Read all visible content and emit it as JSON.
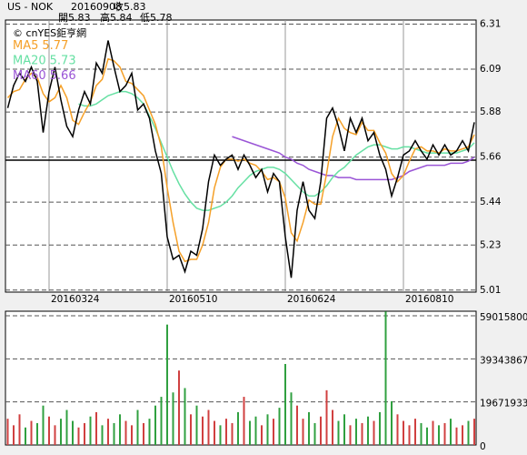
{
  "header": {
    "symbol": "US - NOK",
    "date": "20160908",
    "close": "收5.83",
    "open": "開5.83",
    "high": "高5.84",
    "low": "低5.78"
  },
  "chart_data": [
    {
      "type": "line",
      "watermark": "© cnYES鉅亨網",
      "categories": [
        null,
        null,
        null,
        null,
        null,
        null,
        null,
        "20160324",
        null,
        null,
        null,
        null,
        null,
        null,
        null,
        null,
        null,
        null,
        null,
        null,
        null,
        null,
        null,
        null,
        null,
        null,
        null,
        "20160510",
        null,
        null,
        null,
        null,
        null,
        null,
        null,
        null,
        null,
        null,
        null,
        null,
        null,
        null,
        null,
        null,
        null,
        null,
        null,
        "20160624",
        null,
        null,
        null,
        null,
        null,
        null,
        null,
        null,
        null,
        null,
        null,
        null,
        null,
        null,
        null,
        null,
        null,
        null,
        null,
        "20160810",
        null,
        null,
        null,
        null,
        null,
        null,
        null,
        null,
        null,
        null,
        null,
        null
      ],
      "ylim": [
        5.0,
        6.33
      ],
      "yticks": [
        6.31,
        6.09,
        5.88,
        5.66,
        5.44,
        5.23,
        5.01
      ],
      "reference_line": 5.645,
      "grid": true,
      "series": [
        {
          "color": "#000000",
          "values": [
            5.9,
            6.01,
            6.07,
            6.03,
            6.1,
            6.03,
            5.78,
            5.98,
            6.1,
            5.94,
            5.81,
            5.76,
            5.89,
            5.98,
            5.92,
            6.12,
            6.07,
            6.23,
            6.1,
            5.98,
            6.01,
            6.07,
            5.89,
            5.92,
            5.85,
            5.69,
            5.58,
            5.27,
            5.16,
            5.18,
            5.1,
            5.2,
            5.18,
            5.31,
            5.54,
            5.67,
            5.62,
            5.65,
            5.67,
            5.6,
            5.67,
            5.62,
            5.56,
            5.6,
            5.49,
            5.58,
            5.54,
            5.27,
            5.07,
            5.4,
            5.54,
            5.4,
            5.36,
            5.54,
            5.85,
            5.9,
            5.81,
            5.69,
            5.85,
            5.78,
            5.85,
            5.74,
            5.78,
            5.67,
            5.6,
            5.47,
            5.56,
            5.67,
            5.69,
            5.74,
            5.69,
            5.65,
            5.72,
            5.67,
            5.72,
            5.67,
            5.69,
            5.74,
            5.69,
            5.83
          ]
        },
        {
          "name": "MA5",
          "last": 5.77,
          "color": "#f5a028",
          "values": [
            5.95,
            5.98,
            5.99,
            6.04,
            6.07,
            6.05,
            5.97,
            5.93,
            5.95,
            6.01,
            5.95,
            5.84,
            5.82,
            5.88,
            5.93,
            6.01,
            6.04,
            6.14,
            6.13,
            6.1,
            6.03,
            6.02,
            5.99,
            5.96,
            5.89,
            5.82,
            5.71,
            5.51,
            5.34,
            5.2,
            5.15,
            5.16,
            5.16,
            5.23,
            5.34,
            5.51,
            5.61,
            5.65,
            5.65,
            5.64,
            5.65,
            5.63,
            5.62,
            5.59,
            5.55,
            5.56,
            5.54,
            5.46,
            5.29,
            5.25,
            5.34,
            5.45,
            5.43,
            5.43,
            5.58,
            5.76,
            5.85,
            5.8,
            5.78,
            5.77,
            5.83,
            5.79,
            5.79,
            5.73,
            5.68,
            5.58,
            5.54,
            5.57,
            5.64,
            5.7,
            5.71,
            5.69,
            5.69,
            5.68,
            5.7,
            5.69,
            5.69,
            5.7,
            5.71,
            5.77
          ]
        },
        {
          "name": "MA20",
          "last": 5.73,
          "color": "#66e0a3",
          "values": [
            null,
            null,
            null,
            null,
            null,
            null,
            null,
            null,
            null,
            null,
            null,
            null,
            5.92,
            5.91,
            5.91,
            5.92,
            5.94,
            5.96,
            5.97,
            5.98,
            5.98,
            5.97,
            5.95,
            5.92,
            5.86,
            5.8,
            5.73,
            5.66,
            5.59,
            5.53,
            5.48,
            5.44,
            5.41,
            5.4,
            5.4,
            5.41,
            5.42,
            5.44,
            5.47,
            5.51,
            5.54,
            5.57,
            5.59,
            5.6,
            5.61,
            5.61,
            5.6,
            5.58,
            5.55,
            5.52,
            5.49,
            5.47,
            5.47,
            5.49,
            5.52,
            5.56,
            5.59,
            5.61,
            5.64,
            5.67,
            5.69,
            5.71,
            5.72,
            5.72,
            5.71,
            5.7,
            5.7,
            5.71,
            5.71,
            5.7,
            5.69,
            5.68,
            5.68,
            5.68,
            5.68,
            5.68,
            5.68,
            5.69,
            5.7,
            5.73
          ]
        },
        {
          "name": "MA60",
          "last": 5.66,
          "color": "#9a55d6",
          "values": [
            null,
            null,
            null,
            null,
            null,
            null,
            null,
            null,
            null,
            null,
            null,
            null,
            null,
            null,
            null,
            null,
            null,
            null,
            null,
            null,
            null,
            null,
            null,
            null,
            null,
            null,
            null,
            null,
            null,
            null,
            null,
            null,
            null,
            null,
            null,
            null,
            null,
            null,
            5.76,
            5.75,
            5.74,
            5.73,
            5.72,
            5.71,
            5.7,
            5.69,
            5.68,
            5.66,
            5.65,
            5.63,
            5.62,
            5.6,
            5.59,
            5.58,
            5.57,
            5.57,
            5.56,
            5.56,
            5.56,
            5.55,
            5.55,
            5.55,
            5.55,
            5.55,
            5.55,
            5.55,
            5.56,
            5.57,
            5.59,
            5.6,
            5.61,
            5.62,
            5.62,
            5.62,
            5.62,
            5.63,
            5.63,
            5.63,
            5.64,
            5.66
          ]
        }
      ]
    },
    {
      "type": "bar",
      "ylim": [
        0,
        61100000
      ],
      "yticks": [
        59015800,
        39343867,
        19671933,
        0
      ],
      "grid": true,
      "up_color": "#d04040",
      "down_color": "#30a040",
      "values": [
        12000000,
        9000000,
        14000000,
        8000000,
        11000000,
        10000000,
        18000000,
        13000000,
        9000000,
        12000000,
        16000000,
        11000000,
        8000000,
        10000000,
        13000000,
        15000000,
        9000000,
        12000000,
        10000000,
        14000000,
        11000000,
        9000000,
        16000000,
        10000000,
        12000000,
        18000000,
        22000000,
        55000000,
        24000000,
        34000000,
        26000000,
        14000000,
        18000000,
        13000000,
        16000000,
        11000000,
        9000000,
        12000000,
        10000000,
        15000000,
        22000000,
        11000000,
        13000000,
        9000000,
        14000000,
        12000000,
        17000000,
        37000000,
        24000000,
        18000000,
        12000000,
        15000000,
        10000000,
        13000000,
        25000000,
        16000000,
        11000000,
        14000000,
        9000000,
        12000000,
        10000000,
        13000000,
        11000000,
        15000000,
        61000000,
        20000000,
        14000000,
        11000000,
        9000000,
        12000000,
        10000000,
        8000000,
        11000000,
        9000000,
        10000000,
        12000000,
        8000000,
        9000000,
        11000000,
        12000000
      ]
    }
  ]
}
